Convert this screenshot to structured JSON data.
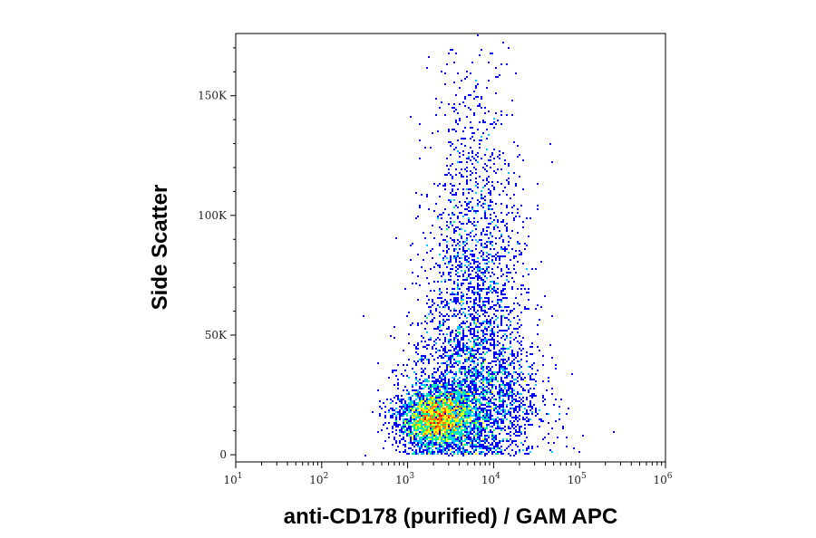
{
  "chart_data": {
    "type": "scatter",
    "subtype": "flow-cytometry-density-dot-plot",
    "title": "",
    "xlabel": "anti-CD178 (purified) / GAM APC",
    "ylabel": "Side Scatter",
    "x_scale": "log",
    "xlim": [
      10,
      1000000
    ],
    "ylim": [
      -3000,
      176000
    ],
    "y_ticks": [
      {
        "value": 0,
        "label": "0"
      },
      {
        "value": 50000,
        "label": "50K"
      },
      {
        "value": 100000,
        "label": "100K"
      },
      {
        "value": 150000,
        "label": "150K"
      }
    ],
    "x_ticks": [
      {
        "value": 10,
        "base": "10",
        "exp": "1"
      },
      {
        "value": 100,
        "base": "10",
        "exp": "2"
      },
      {
        "value": 1000,
        "base": "10",
        "exp": "3"
      },
      {
        "value": 10000,
        "base": "10",
        "exp": "4"
      },
      {
        "value": 100000,
        "base": "10",
        "exp": "5"
      },
      {
        "value": 1000000,
        "base": "10",
        "exp": "6"
      }
    ],
    "grid": false,
    "legend": "none",
    "color_scale": [
      "#0000ff",
      "#00c8ff",
      "#00ff80",
      "#ffff00",
      "#ff8000",
      "#ff0000"
    ],
    "populations": [
      {
        "center_x": 2200,
        "center_y": 15000,
        "spread_log_x": 0.22,
        "spread_y": 6000,
        "share": 0.42
      },
      {
        "center_x": 6000,
        "center_y": 24000,
        "spread_log_x": 0.38,
        "spread_y": 16000,
        "share": 0.33
      },
      {
        "center_x": 6000,
        "center_y": 68000,
        "spread_log_x": 0.3,
        "spread_y": 26000,
        "share": 0.2
      },
      {
        "center_x": 6000,
        "center_y": 120000,
        "spread_log_x": 0.25,
        "spread_y": 28000,
        "share": 0.05
      }
    ]
  }
}
